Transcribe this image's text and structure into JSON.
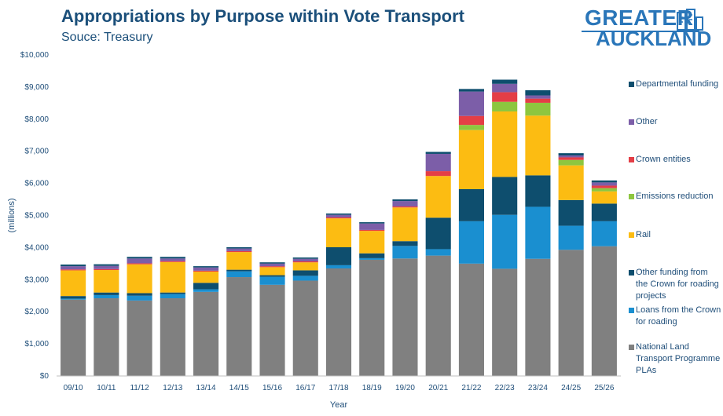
{
  "header": {
    "title": "Appropriations by Purpose within Vote Transport",
    "subtitle": "Souce: Treasury"
  },
  "logo": {
    "line1": "GREATER",
    "line2": "AUCKLAND",
    "color": "#2a76b9"
  },
  "chart_data": {
    "type": "bar",
    "stacked": true,
    "title": "Appropriations by Purpose within Vote Transport",
    "subtitle": "Souce: Treasury",
    "xlabel": "Year",
    "ylabel": "(millions)",
    "ylim": [
      0,
      10000
    ],
    "yticks": [
      0,
      1000,
      2000,
      3000,
      4000,
      5000,
      6000,
      7000,
      8000,
      9000,
      10000
    ],
    "ytick_labels": [
      "$0",
      "$1,000",
      "$2,000",
      "$3,000",
      "$4,000",
      "$5,000",
      "$6,000",
      "$7,000",
      "$8,000",
      "$9,000",
      "$10,000"
    ],
    "grid": false,
    "legend_position": "right",
    "categories": [
      "09/10",
      "10/11",
      "11/12",
      "12/13",
      "13/14",
      "14/15",
      "15/16",
      "16/17",
      "17/18",
      "18/19",
      "19/20",
      "20/21",
      "21/22",
      "22/23",
      "23/24",
      "24/25",
      "25/26"
    ],
    "series": [
      {
        "name": "National Land Transport Programme PLAs",
        "color": "#808080",
        "values": [
          2380,
          2420,
          2350,
          2420,
          2620,
          3080,
          2840,
          2970,
          3350,
          3620,
          3660,
          3750,
          3500,
          3340,
          3650,
          3930,
          4040
        ]
      },
      {
        "name": "Loans from the Crown for roading",
        "color": "#1a8fd0",
        "values": [
          30,
          100,
          150,
          130,
          80,
          180,
          250,
          150,
          100,
          50,
          390,
          200,
          1320,
          1680,
          1620,
          750,
          780
        ]
      },
      {
        "name": "Other funding from the Crown for roading projects",
        "color": "#0e4e6e",
        "values": [
          80,
          80,
          80,
          50,
          200,
          50,
          50,
          170,
          560,
          150,
          150,
          980,
          1000,
          1180,
          980,
          800,
          550
        ]
      },
      {
        "name": "Rail",
        "color": "#fcbc12",
        "values": [
          800,
          700,
          900,
          950,
          350,
          550,
          250,
          250,
          900,
          700,
          1050,
          1300,
          1840,
          2040,
          1860,
          1080,
          380
        ]
      },
      {
        "name": "Emissions reduction",
        "color": "#8dc63f",
        "values": [
          0,
          0,
          0,
          0,
          0,
          0,
          0,
          0,
          0,
          0,
          0,
          0,
          160,
          300,
          400,
          170,
          100
        ]
      },
      {
        "name": "Crown entities",
        "color": "#e43e46",
        "values": [
          30,
          30,
          30,
          30,
          30,
          30,
          30,
          30,
          30,
          30,
          30,
          150,
          280,
          300,
          130,
          80,
          80
        ]
      },
      {
        "name": "Other",
        "color": "#7c5ea8",
        "values": [
          100,
          100,
          150,
          80,
          100,
          80,
          80,
          80,
          80,
          200,
          170,
          540,
          760,
          260,
          100,
          60,
          100
        ]
      },
      {
        "name": "Departmental funding",
        "color": "#0e4e6e",
        "values": [
          50,
          50,
          50,
          50,
          40,
          40,
          40,
          40,
          40,
          40,
          50,
          60,
          80,
          130,
          160,
          70,
          60
        ]
      }
    ]
  }
}
